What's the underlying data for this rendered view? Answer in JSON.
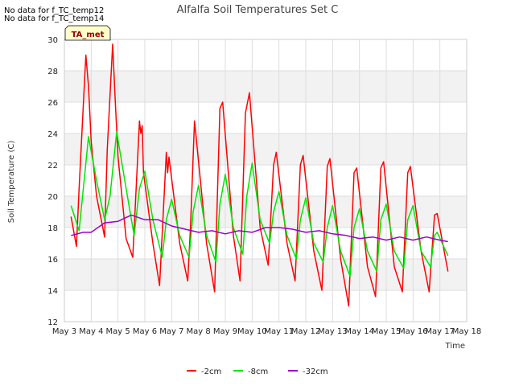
{
  "notes": [
    "No data for f_TC_temp12",
    "No data for f_TC_temp14"
  ],
  "badge": "TA_met",
  "colors": {
    "band": "#f2f2f2",
    "grid": "#dddddd",
    "badge_bg": "#ffffcc"
  },
  "chart_data": {
    "type": "line",
    "title": "Alfalfa Soil Temperatures Set C",
    "xlabel": "Time",
    "ylabel": "Soil Temperature (C)",
    "xlim": [
      3,
      18
    ],
    "ylim": [
      12,
      30
    ],
    "x_ticks": [
      3,
      4,
      5,
      6,
      7,
      8,
      9,
      10,
      11,
      12,
      13,
      14,
      15,
      16,
      17,
      18
    ],
    "x_tick_labels": [
      "May 3",
      "May 4",
      "May 5",
      "May 6",
      "May 7",
      "May 8",
      "May 9",
      "May 10",
      "May 11",
      "May 12",
      "May 13",
      "May 14",
      "May 15",
      "May 16",
      "May 17",
      "May 18"
    ],
    "y_ticks": [
      12,
      14,
      16,
      18,
      20,
      22,
      24,
      26,
      28,
      30
    ],
    "grid": true,
    "legend_position": "bottom",
    "series": [
      {
        "name": "-2cm",
        "color": "#ff0000",
        "x": [
          3.25,
          3.45,
          3.55,
          3.8,
          3.9,
          4.0,
          4.2,
          4.5,
          4.6,
          4.8,
          4.9,
          5.0,
          5.3,
          5.55,
          5.62,
          5.8,
          5.85,
          5.9,
          5.95,
          6.3,
          6.55,
          6.6,
          6.8,
          6.85,
          6.9,
          7.3,
          7.6,
          7.7,
          7.85,
          7.9,
          8.3,
          8.6,
          8.8,
          8.9,
          9.3,
          9.55,
          9.75,
          9.9,
          10.3,
          10.6,
          10.8,
          10.9,
          11.3,
          11.6,
          11.8,
          11.9,
          12.3,
          12.6,
          12.8,
          12.9,
          13.3,
          13.6,
          13.8,
          13.9,
          14.3,
          14.6,
          14.8,
          14.9,
          15.3,
          15.6,
          15.8,
          15.9,
          16.3,
          16.6,
          16.8,
          16.9,
          17.3
        ],
        "y": [
          18.7,
          16.8,
          20.5,
          29.0,
          27.0,
          23.5,
          20.0,
          17.4,
          23.0,
          29.7,
          26.0,
          22.5,
          17.3,
          16.1,
          18.5,
          24.8,
          24.0,
          24.5,
          21.5,
          17.0,
          14.3,
          16.0,
          22.8,
          21.5,
          22.5,
          17.0,
          14.6,
          18.0,
          24.8,
          24.0,
          17.0,
          13.9,
          25.6,
          26.0,
          17.5,
          14.6,
          25.3,
          26.6,
          18.0,
          15.6,
          22.0,
          22.8,
          17.0,
          14.6,
          22.0,
          22.6,
          16.5,
          14.0,
          21.9,
          22.4,
          16.0,
          13.0,
          21.5,
          21.8,
          15.5,
          13.6,
          21.8,
          22.2,
          15.5,
          13.9,
          21.5,
          21.9,
          16.5,
          13.9,
          18.8,
          18.9,
          15.2
        ]
      },
      {
        "name": "-8cm",
        "color": "#00e600",
        "x": [
          3.25,
          3.55,
          3.9,
          4.2,
          4.5,
          4.7,
          4.95,
          5.3,
          5.6,
          5.8,
          6.0,
          6.3,
          6.65,
          6.8,
          7.0,
          7.3,
          7.65,
          7.8,
          8.0,
          8.3,
          8.65,
          8.8,
          9.0,
          9.3,
          9.65,
          9.8,
          10.0,
          10.3,
          10.65,
          10.8,
          11.0,
          11.3,
          11.65,
          11.8,
          12.0,
          12.3,
          12.65,
          12.8,
          13.0,
          13.3,
          13.65,
          13.8,
          14.0,
          14.3,
          14.65,
          14.8,
          15.0,
          15.3,
          15.65,
          15.8,
          16.0,
          16.3,
          16.65,
          16.8,
          16.9,
          17.3
        ],
        "y": [
          19.4,
          17.8,
          23.8,
          21.0,
          18.5,
          20.0,
          24.1,
          20.5,
          17.5,
          20.5,
          21.6,
          18.5,
          16.1,
          18.5,
          19.8,
          17.5,
          16.1,
          19.0,
          20.7,
          17.5,
          15.8,
          19.5,
          21.4,
          18.0,
          16.3,
          20.0,
          22.1,
          18.5,
          17.0,
          19.0,
          20.3,
          17.5,
          16.0,
          18.5,
          19.9,
          17.0,
          15.8,
          18.0,
          19.4,
          16.5,
          14.9,
          18.0,
          19.2,
          16.5,
          15.2,
          18.5,
          19.5,
          16.5,
          15.4,
          18.5,
          19.4,
          16.5,
          15.5,
          17.5,
          17.7,
          16.2
        ]
      },
      {
        "name": "-32cm",
        "color": "#9900cc",
        "x": [
          3.25,
          3.7,
          4.0,
          4.5,
          5.0,
          5.5,
          6.0,
          6.5,
          7.0,
          7.5,
          8.0,
          8.5,
          9.0,
          9.5,
          10.0,
          10.5,
          11.0,
          11.5,
          12.0,
          12.5,
          13.0,
          13.5,
          14.0,
          14.5,
          15.0,
          15.5,
          16.0,
          16.5,
          17.0,
          17.3
        ],
        "y": [
          17.5,
          17.7,
          17.7,
          18.3,
          18.4,
          18.8,
          18.5,
          18.5,
          18.1,
          17.9,
          17.7,
          17.8,
          17.6,
          17.8,
          17.7,
          18.0,
          18.0,
          17.9,
          17.7,
          17.8,
          17.6,
          17.5,
          17.3,
          17.4,
          17.2,
          17.4,
          17.2,
          17.4,
          17.2,
          17.1
        ]
      }
    ]
  }
}
